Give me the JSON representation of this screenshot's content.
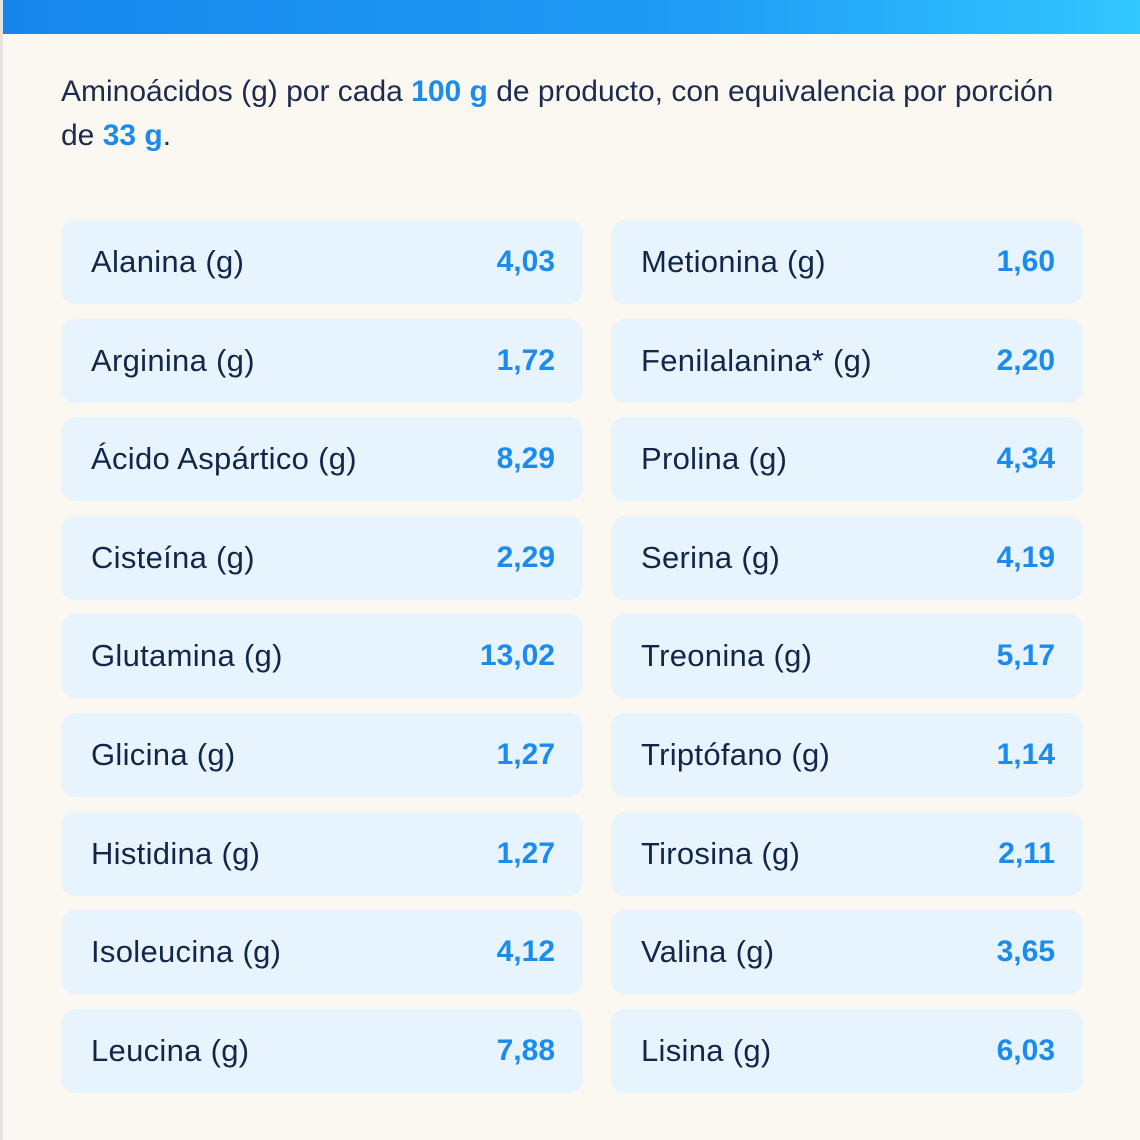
{
  "intro": {
    "parts": [
      "Aminoácidos (g) por cada ",
      "100 g",
      " de producto, con equivalencia por porción de ",
      "33 g",
      "."
    ]
  },
  "columns": [
    [
      {
        "label": "Alanina (g)",
        "value": "4,03"
      },
      {
        "label": "Arginina (g)",
        "value": "1,72"
      },
      {
        "label": "Ácido Aspártico (g)",
        "value": "8,29"
      },
      {
        "label": "Cisteína (g)",
        "value": "2,29"
      },
      {
        "label": "Glutamina (g)",
        "value": "13,02"
      },
      {
        "label": "Glicina (g)",
        "value": "1,27"
      },
      {
        "label": "Histidina (g)",
        "value": "1,27"
      },
      {
        "label": "Isoleucina (g)",
        "value": "4,12"
      },
      {
        "label": "Leucina (g)",
        "value": "7,88"
      }
    ],
    [
      {
        "label": "Metionina (g)",
        "value": "1,60"
      },
      {
        "label": "Fenilalanina* (g)",
        "value": "2,20"
      },
      {
        "label": "Prolina (g)",
        "value": "4,34"
      },
      {
        "label": "Serina (g)",
        "value": "4,19"
      },
      {
        "label": "Treonina (g)",
        "value": "5,17"
      },
      {
        "label": "Triptófano (g)",
        "value": "1,14"
      },
      {
        "label": "Tirosina (g)",
        "value": "2,11"
      },
      {
        "label": "Valina (g)",
        "value": "3,65"
      },
      {
        "label": "Lisina (g)",
        "value": "6,03"
      }
    ]
  ]
}
